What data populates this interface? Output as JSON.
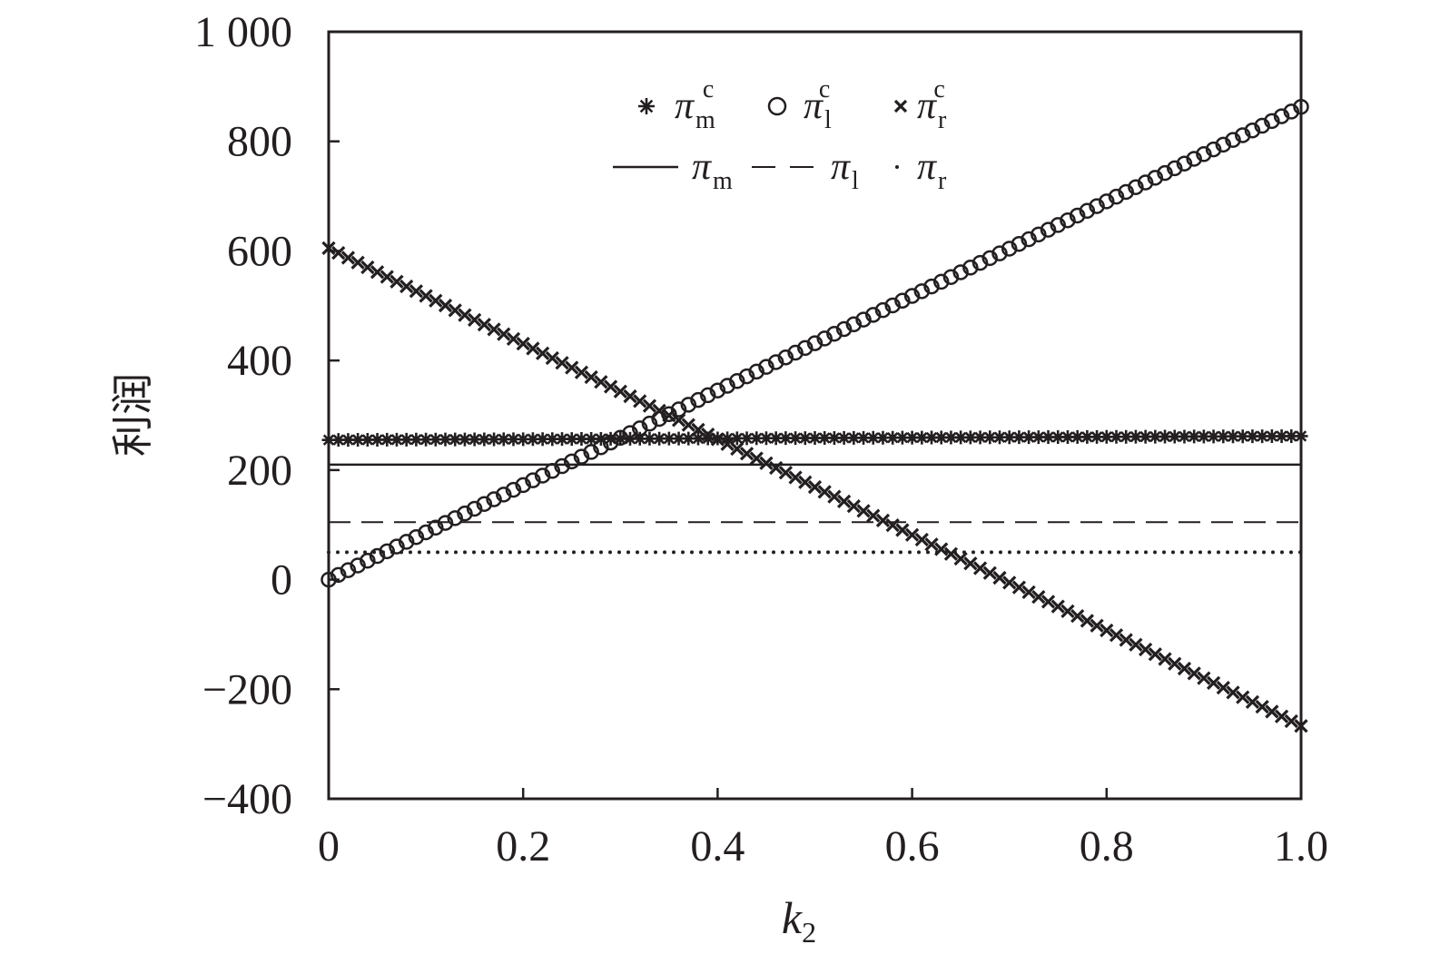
{
  "chart_data": {
    "type": "line",
    "title": "",
    "xlabel": {
      "main": "k",
      "sub": "2"
    },
    "ylabel": "利润",
    "xlim": [
      0,
      1
    ],
    "ylim": [
      -400,
      1000
    ],
    "xticks": [
      0,
      0.2,
      0.4,
      0.6,
      0.8,
      1.0
    ],
    "xtick_labels": [
      "0",
      "0.2",
      "0.4",
      "0.6",
      "0.8",
      "1.0"
    ],
    "yticks": [
      -400,
      -200,
      0,
      200,
      400,
      600,
      800,
      1000
    ],
    "ytick_labels": [
      "−400",
      "−200",
      "0",
      "200",
      "400",
      "600",
      "800",
      "1 000"
    ],
    "grid": false,
    "legend_position": "top-center",
    "x_step": 0.01,
    "series": [
      {
        "name": {
          "main": "π",
          "sub": "m",
          "sup": "c"
        },
        "style": "asterisk-markers",
        "x_range": [
          0,
          1
        ],
        "y_start": 255,
        "y_end": 262
      },
      {
        "name": {
          "main": "π",
          "sub": "l",
          "sup": "c"
        },
        "style": "circle-markers",
        "x_range": [
          0,
          1
        ],
        "y_start": 0,
        "y_end": 863
      },
      {
        "name": {
          "main": "π",
          "sub": "r",
          "sup": "c"
        },
        "style": "cross-markers",
        "x_range": [
          0,
          1
        ],
        "y_start": 605,
        "y_end": -267
      },
      {
        "name": {
          "main": "π",
          "sub": "m",
          "sup": ""
        },
        "style": "solid-line",
        "x_range": [
          0,
          1
        ],
        "y_start": 210,
        "y_end": 210
      },
      {
        "name": {
          "main": "π",
          "sub": "l",
          "sup": ""
        },
        "style": "dashed-line",
        "x_range": [
          0,
          1
        ],
        "y_start": 105,
        "y_end": 105
      },
      {
        "name": {
          "main": "π",
          "sub": "r",
          "sup": ""
        },
        "style": "dotted-line",
        "x_range": [
          0,
          1
        ],
        "y_start": 50,
        "y_end": 50
      }
    ]
  }
}
